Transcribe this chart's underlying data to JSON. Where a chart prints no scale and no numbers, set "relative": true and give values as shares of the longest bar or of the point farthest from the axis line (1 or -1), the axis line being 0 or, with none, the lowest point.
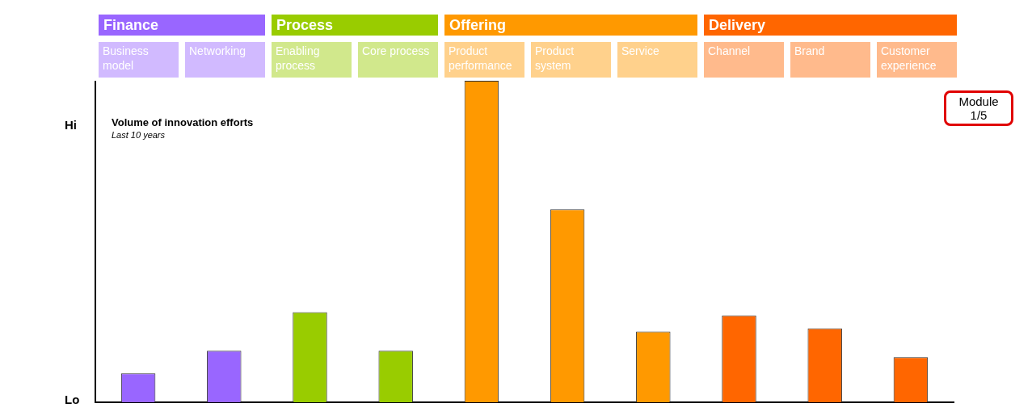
{
  "chart_data": {
    "type": "bar",
    "title": "Volume of innovation efforts",
    "subtitle": "Last 10 years",
    "relative": true,
    "stacked": true,
    "legend": "top",
    "categories": [
      "Business model",
      "Networking",
      "Enabling process",
      "Core process",
      "Product performance",
      "Product system",
      "Service",
      "Channel",
      "Brand",
      "Customer experience"
    ],
    "series": [
      {
        "name": "Finance",
        "color": "#9966ff",
        "values": [
          0.09,
          0.16,
          null,
          null,
          null,
          null,
          null,
          null,
          null,
          null
        ]
      },
      {
        "name": "Process",
        "color": "#99cc00",
        "values": [
          null,
          null,
          0.28,
          0.16,
          null,
          null,
          null,
          null,
          null,
          null
        ]
      },
      {
        "name": "Offering",
        "color": "#ff9900",
        "values": [
          null,
          null,
          null,
          null,
          1,
          0.6,
          0.22,
          null,
          null,
          null
        ]
      },
      {
        "name": "Delivery",
        "color": "#ff6600",
        "values": [
          null,
          null,
          null,
          null,
          null,
          null,
          null,
          0.27,
          0.23,
          0.14
        ]
      }
    ],
    "annotations": [
      "Hi",
      "Lo",
      "Module 1/5"
    ],
    "grid": false
  }
}
